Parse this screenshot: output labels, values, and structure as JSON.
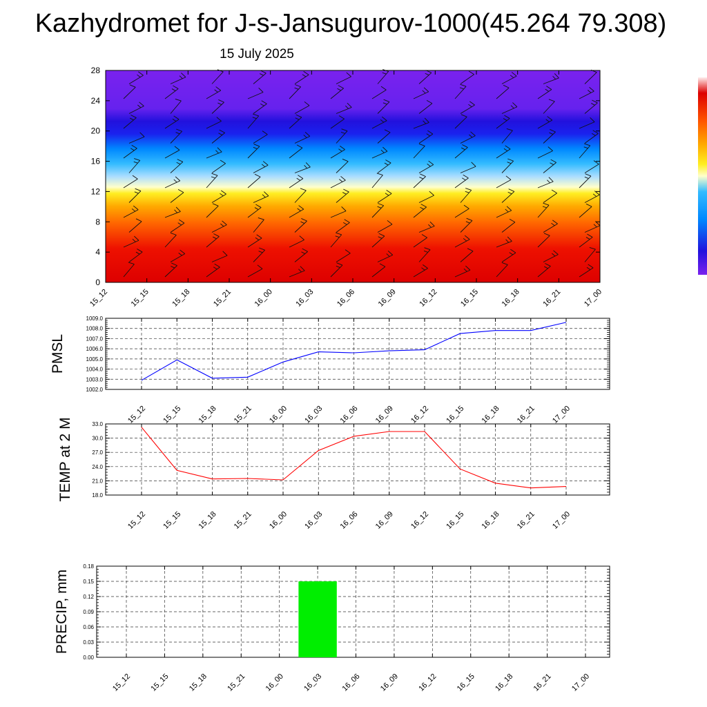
{
  "header": {
    "title": "Kazhydromet for J-s-Jansugurov-1000(45.264 79.308)",
    "date": "15 July 2025"
  },
  "chart_data": [
    {
      "type": "heatmap",
      "y_ticks": [
        "0",
        "4",
        "8",
        "12",
        "16",
        "20",
        "24",
        "28"
      ],
      "ylim": [
        0,
        28
      ],
      "categories": [
        "15_12",
        "15_15",
        "15_18",
        "15_21",
        "16_00",
        "16_03",
        "16_06",
        "16_09",
        "16_12",
        "16_15",
        "16_18",
        "16_21",
        "17_00"
      ],
      "overlay": "wind barbs",
      "colormap": [
        "#ff0000",
        "#ff5500",
        "#ffaa00",
        "#ffee00",
        "#ffffcc",
        "#66ccff",
        "#0077ff",
        "#1a1aee",
        "#7722ee"
      ]
    },
    {
      "type": "line",
      "ylabel": "PMSL",
      "ylim": [
        1002.0,
        1009.0
      ],
      "y_ticks": [
        "1002.0",
        "1003.0",
        "1004.0",
        "1005.0",
        "1006.0",
        "1007.0",
        "1008.0",
        "1009.0"
      ],
      "categories": [
        "15_12",
        "15_15",
        "15_18",
        "15_21",
        "16_00",
        "16_03",
        "16_06",
        "16_09",
        "16_12",
        "16_15",
        "16_18",
        "16_21",
        "17_00"
      ],
      "values": [
        1002.9,
        1004.9,
        1003.1,
        1003.2,
        1004.7,
        1005.7,
        1005.6,
        1005.8,
        1005.9,
        1007.5,
        1007.8,
        1007.8,
        1008.6
      ],
      "color": "#0000ff",
      "grid": true
    },
    {
      "type": "line",
      "ylabel": "TEMP at 2 M",
      "ylim": [
        18.0,
        33.0
      ],
      "y_ticks": [
        "18.0",
        "21.0",
        "24.0",
        "27.0",
        "30.0",
        "33.0"
      ],
      "categories": [
        "15_12",
        "15_15",
        "15_18",
        "15_21",
        "16_00",
        "16_03",
        "16_06",
        "16_09",
        "16_12",
        "16_15",
        "16_18",
        "16_21",
        "17_00"
      ],
      "values": [
        32.3,
        23.2,
        21.4,
        21.5,
        21.2,
        27.4,
        30.4,
        31.4,
        31.4,
        23.5,
        20.5,
        19.5,
        19.8
      ],
      "color": "#ff0000",
      "grid": true
    },
    {
      "type": "bar",
      "ylabel": "PRECIP, mm",
      "ylim": [
        0.0,
        0.18
      ],
      "y_ticks": [
        "0.00",
        "0.03",
        "0.06",
        "0.09",
        "0.12",
        "0.15",
        "0.18"
      ],
      "categories": [
        "15_12",
        "15_15",
        "15_18",
        "15_21",
        "16_00",
        "16_03",
        "16_06",
        "16_09",
        "16_12",
        "16_15",
        "16_18",
        "16_21",
        "17_00"
      ],
      "values": [
        0,
        0,
        0,
        0,
        0,
        0.15,
        0,
        0,
        0,
        0,
        0,
        0,
        0
      ],
      "color": "#00ee00",
      "grid": true
    }
  ]
}
